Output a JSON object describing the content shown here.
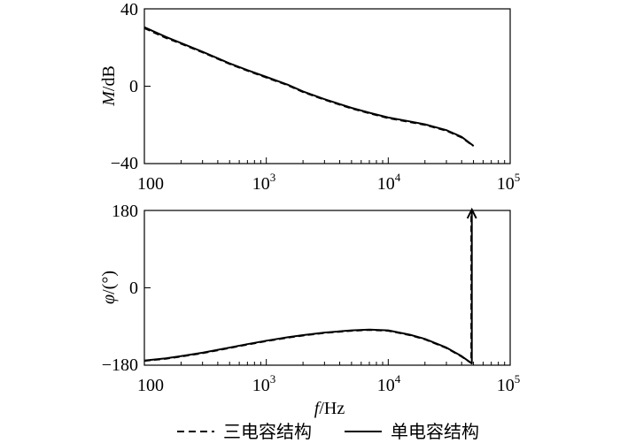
{
  "chart_data": [
    {
      "type": "line",
      "x_scale": "log",
      "xlim": [
        100,
        100000
      ],
      "ylim": [
        -40,
        40
      ],
      "x_tick_labels": [
        "100",
        "10",
        "10",
        "10"
      ],
      "x_tick_exponents": [
        "",
        "3",
        "4",
        "5"
      ],
      "y_tick_labels": [
        "40",
        "0",
        "−40"
      ],
      "ylabel_italic": "M",
      "ylabel_rest": "/dB",
      "series": [
        {
          "name": "三电容结构",
          "style": "dashed",
          "x": [
            100,
            150,
            200,
            300,
            500,
            700,
            1000,
            1500,
            2000,
            3000,
            5000,
            7000,
            10000,
            15000,
            20000,
            30000,
            40000,
            50000
          ],
          "y": [
            30,
            25,
            22,
            17.5,
            11.5,
            8,
            4.5,
            0.5,
            -3,
            -7,
            -11.5,
            -14,
            -16.5,
            -18.5,
            -20,
            -23,
            -26.5,
            -31
          ]
        },
        {
          "name": "单电容结构",
          "style": "solid",
          "x": [
            100,
            150,
            200,
            300,
            500,
            700,
            1000,
            1500,
            2000,
            3000,
            5000,
            7000,
            10000,
            15000,
            20000,
            30000,
            40000,
            50000
          ],
          "y": [
            30.5,
            25.5,
            22.3,
            17.8,
            11.8,
            8.3,
            4.8,
            0.8,
            -2.7,
            -6.7,
            -11.2,
            -13.7,
            -16.2,
            -18.2,
            -19.7,
            -22.7,
            -26.2,
            -30.8
          ]
        }
      ]
    },
    {
      "type": "line",
      "x_scale": "log",
      "xlim": [
        100,
        100000
      ],
      "ylim": [
        -180,
        180
      ],
      "x_tick_labels": [
        "100",
        "10",
        "10",
        "10"
      ],
      "x_tick_exponents": [
        "",
        "3",
        "4",
        "5"
      ],
      "y_tick_labels": [
        "180",
        "0",
        "−180"
      ],
      "ylabel_italic": "φ",
      "ylabel_rest": "/(°)",
      "xlabel_italic": "f",
      "xlabel_rest": "/Hz",
      "series": [
        {
          "name": "三电容结构",
          "style": "dashed",
          "x": [
            100,
            150,
            200,
            300,
            500,
            700,
            1000,
            1500,
            2000,
            3000,
            5000,
            7000,
            10000,
            15000,
            20000,
            30000,
            40000,
            48000,
            48000
          ],
          "y": [
            -170,
            -165,
            -160,
            -152,
            -140,
            -132,
            -124,
            -116,
            -111,
            -105,
            -100,
            -98,
            -100,
            -110,
            -120,
            -140,
            -160,
            -175,
            175
          ]
        },
        {
          "name": "单电容结构",
          "style": "solid",
          "x": [
            100,
            150,
            200,
            300,
            500,
            700,
            1000,
            1500,
            2000,
            3000,
            5000,
            7000,
            10000,
            15000,
            20000,
            30000,
            40000,
            48500,
            48500
          ],
          "y": [
            -169,
            -164,
            -159,
            -151,
            -139,
            -131,
            -123,
            -115,
            -110,
            -104,
            -99,
            -97,
            -99,
            -109,
            -119,
            -139,
            -159,
            -176,
            178
          ]
        }
      ]
    }
  ],
  "legend": {
    "items": [
      {
        "label": "三电容结构",
        "style": "dashed"
      },
      {
        "label": "单电容结构",
        "style": "solid"
      }
    ]
  }
}
